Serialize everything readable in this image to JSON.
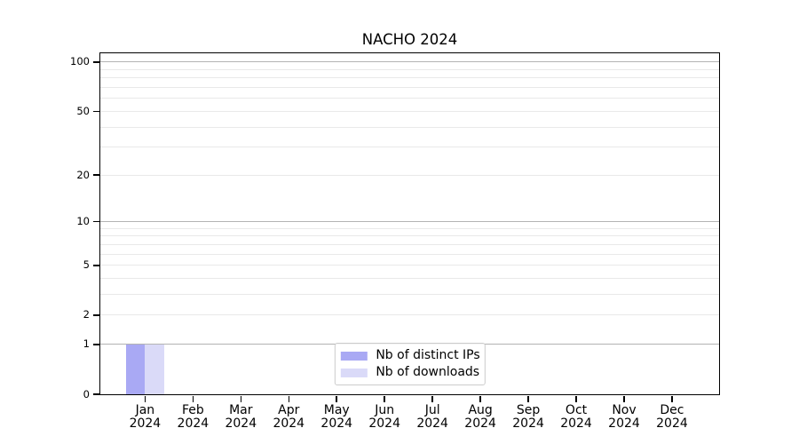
{
  "title": "NACHO 2024",
  "legend": {
    "items": [
      {
        "label": "Nb of distinct IPs",
        "color": "#a9a9f4"
      },
      {
        "label": "Nb of downloads",
        "color": "#dadaf8"
      }
    ],
    "position": "lower center"
  },
  "chart_data": {
    "type": "bar",
    "title": "NACHO 2024",
    "categories": [
      "Jan 2024",
      "Feb 2024",
      "Mar 2024",
      "Apr 2024",
      "May 2024",
      "Jun 2024",
      "Jul 2024",
      "Aug 2024",
      "Sep 2024",
      "Oct 2024",
      "Nov 2024",
      "Dec 2024"
    ],
    "series": [
      {
        "name": "Nb of distinct IPs",
        "color": "#a9a9f4",
        "values": [
          1,
          0,
          0,
          0,
          0,
          0,
          0,
          0,
          0,
          0,
          0,
          0
        ]
      },
      {
        "name": "Nb of downloads",
        "color": "#dadaf8",
        "values": [
          1,
          0,
          0,
          0,
          0,
          0,
          0,
          0,
          0,
          0,
          0,
          0
        ]
      }
    ],
    "xlabel": "",
    "ylabel": "",
    "yscale": "log1p",
    "ylim": [
      0,
      113.2
    ],
    "yticks": [
      100,
      50,
      20,
      10,
      5,
      2,
      1,
      0
    ],
    "major_gridlines": [
      100,
      10,
      1
    ],
    "minor_gridlines": [
      90,
      80,
      70,
      60,
      50,
      40,
      30,
      20,
      9,
      8,
      7,
      6,
      5,
      4,
      3,
      2
    ],
    "grid": true,
    "legend_position": "lower center",
    "colors": {
      "major_grid": "#b3b3b3",
      "minor_grid": "#e9e9e9",
      "axis": "#000000",
      "background": "#ffffff"
    }
  }
}
